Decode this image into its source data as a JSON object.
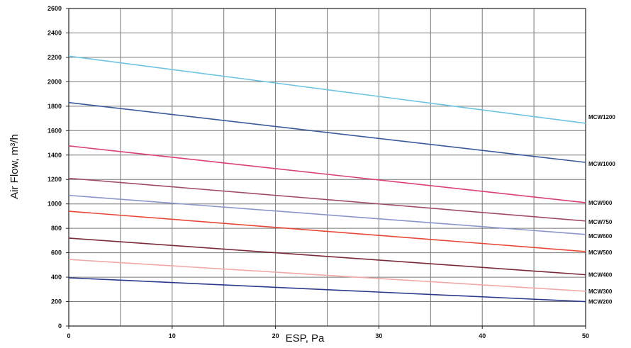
{
  "chart_data": {
    "type": "line",
    "title": "",
    "xlabel": "ESP, Pa",
    "ylabel": "Air Flow, m³/h",
    "xlim": [
      0,
      50
    ],
    "ylim": [
      0,
      2600
    ],
    "x_ticks": [
      "0",
      "10",
      "20",
      "30",
      "40",
      "50"
    ],
    "y_ticks": [
      "0",
      "200",
      "400",
      "600",
      "800",
      "1000",
      "1200",
      "1400",
      "1600",
      "1800",
      "2000",
      "2200",
      "2400",
      "2600"
    ],
    "grid": true,
    "series": [
      {
        "name": "MCW1200",
        "color": "#6ec3e0",
        "x": [
          0,
          50
        ],
        "y": [
          2210,
          1660
        ]
      },
      {
        "name": "MCW1000",
        "color": "#3b5a9a",
        "x": [
          0,
          50
        ],
        "y": [
          1830,
          1340
        ]
      },
      {
        "name": "MCW900",
        "color": "#d8407a",
        "x": [
          0,
          50
        ],
        "y": [
          1475,
          1010
        ]
      },
      {
        "name": "MCW750",
        "color": "#a04a6a",
        "x": [
          0,
          50
        ],
        "y": [
          1210,
          860
        ]
      },
      {
        "name": "MCW600",
        "color": "#8a96c8",
        "x": [
          0,
          50
        ],
        "y": [
          1070,
          750
        ]
      },
      {
        "name": "MCW500",
        "color": "#e8483a",
        "x": [
          0,
          50
        ],
        "y": [
          940,
          610
        ]
      },
      {
        "name": "MCW400",
        "color": "#7a2a3a",
        "x": [
          0,
          50
        ],
        "y": [
          720,
          420
        ]
      },
      {
        "name": "MCW300",
        "color": "#f0a8a8",
        "x": [
          0,
          50
        ],
        "y": [
          545,
          285
        ]
      },
      {
        "name": "MCW200",
        "color": "#2c3a8c",
        "x": [
          0,
          50
        ],
        "y": [
          395,
          200
        ]
      }
    ]
  }
}
